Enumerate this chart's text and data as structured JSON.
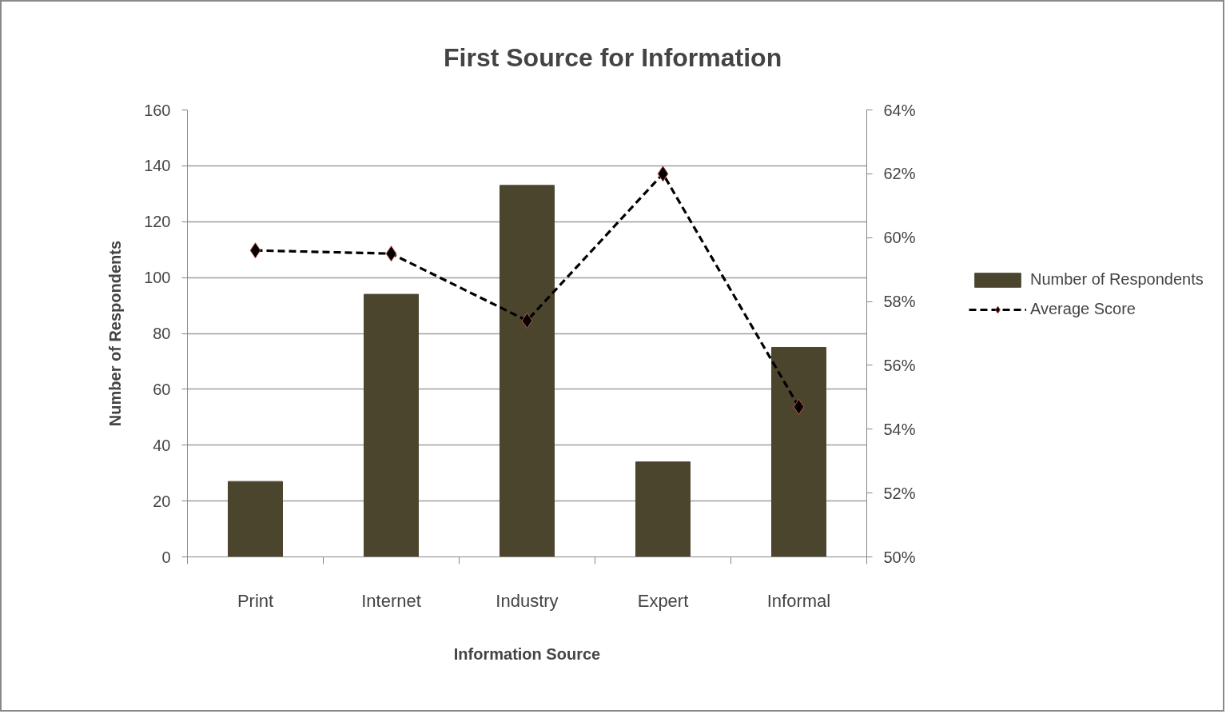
{
  "chart_data": {
    "type": "bar",
    "title": "First Source for Information",
    "xlabel": "Information Source",
    "ylabel": "Number of Respondents",
    "categories": [
      "Print",
      "Internet",
      "Industry",
      "Expert",
      "Informal"
    ],
    "series": [
      {
        "name": "Number of Respondents",
        "color": "#4b452e",
        "values": [
          27,
          94,
          133,
          34,
          75
        ]
      },
      {
        "name": "Average Score",
        "type": "line",
        "axis": "y2",
        "color": "#000000",
        "values": [
          59.6,
          59.5,
          57.4,
          62.0,
          54.7
        ]
      }
    ],
    "ylim": [
      0,
      160
    ],
    "yticks": [
      0,
      20,
      40,
      60,
      80,
      100,
      120,
      140,
      160
    ],
    "y2lim": [
      50,
      64
    ],
    "y2ticks": [
      {
        "value": 50,
        "label": "50%"
      },
      {
        "value": 52,
        "label": "52%"
      },
      {
        "value": 54,
        "label": "54%"
      },
      {
        "value": 56,
        "label": "56%"
      },
      {
        "value": 58,
        "label": "58%"
      },
      {
        "value": 60,
        "label": "60%"
      },
      {
        "value": 62,
        "label": "62%"
      },
      {
        "value": 64,
        "label": "64%"
      }
    ],
    "grid": "y",
    "legend": "right",
    "marker": "diamond",
    "line_style": "dashed"
  }
}
